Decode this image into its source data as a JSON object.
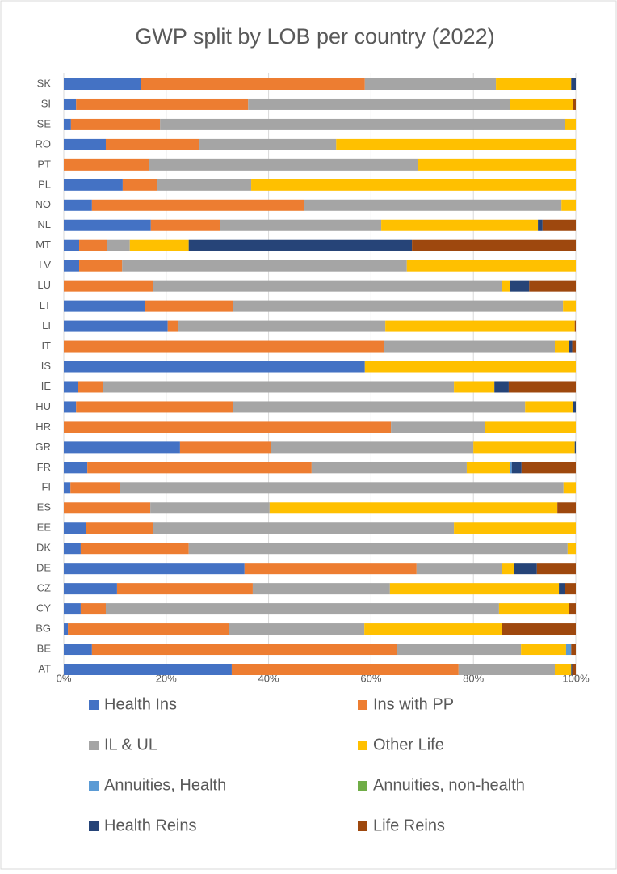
{
  "chart_data": {
    "type": "stacked_barh",
    "title": "GWP split by LOB per country (2022)",
    "categories": [
      "AT",
      "BE",
      "BG",
      "CY",
      "CZ",
      "DE",
      "DK",
      "EE",
      "ES",
      "FI",
      "FR",
      "GR",
      "HR",
      "HU",
      "IE",
      "IS",
      "IT",
      "LI",
      "LT",
      "LU",
      "LV",
      "MT",
      "NL",
      "NO",
      "PL",
      "PT",
      "RO",
      "SE",
      "SI",
      "SK"
    ],
    "series": [
      {
        "name": "Health Ins",
        "color": "#4472c4",
        "values": [
          32.8,
          5.5,
          0.8,
          3.3,
          10.4,
          35.3,
          3.3,
          4.3,
          0,
          1.3,
          4.6,
          22.7,
          0,
          2.4,
          2.7,
          58.8,
          0,
          20.3,
          15.8,
          0,
          3.0,
          3.0,
          17.0,
          5.5,
          11.5,
          0,
          8.2,
          1.4,
          2.4,
          15.1
        ]
      },
      {
        "name": "Ins with PP",
        "color": "#ed7d31",
        "values": [
          44.3,
          59.5,
          31.5,
          4.9,
          26.5,
          33.6,
          21.1,
          13.2,
          16.9,
          9.7,
          43.8,
          17.8,
          63.9,
          30.7,
          5.0,
          0,
          62.5,
          2.1,
          17.3,
          17.5,
          8.4,
          5.5,
          13.6,
          41.5,
          6.8,
          16.6,
          18.3,
          17.4,
          33.6,
          43.7
        ]
      },
      {
        "name": "IL & UL",
        "color": "#a5a5a5",
        "values": [
          18.8,
          24.3,
          26.4,
          76.8,
          26.8,
          16.7,
          74.0,
          58.7,
          23.3,
          86.6,
          30.3,
          39.5,
          18.4,
          57.0,
          68.5,
          0,
          33.4,
          40.4,
          64.4,
          68.0,
          55.6,
          4.4,
          31.4,
          50.2,
          18.3,
          52.6,
          26.7,
          79.1,
          51.1,
          25.6
        ]
      },
      {
        "name": "Other Life",
        "color": "#ffc000",
        "values": [
          3.2,
          8.8,
          26.9,
          13.7,
          33.0,
          2.4,
          1.6,
          23.8,
          56.2,
          2.4,
          8.5,
          19.8,
          17.7,
          9.4,
          7.9,
          41.2,
          2.7,
          37.0,
          2.5,
          1.7,
          33.0,
          11.5,
          30.6,
          2.8,
          63.4,
          30.8,
          46.8,
          2.1,
          12.4,
          14.7
        ]
      },
      {
        "name": "Annuities, Health",
        "color": "#5b9bd5",
        "values": [
          0,
          1.0,
          0,
          0,
          0,
          0,
          0,
          0,
          0,
          0,
          0.3,
          0,
          0,
          0,
          0,
          0,
          0,
          0,
          0,
          0,
          0,
          0,
          0,
          0,
          0,
          0,
          0,
          0,
          0,
          0
        ]
      },
      {
        "name": "Annuities, non-health",
        "color": "#70ad47",
        "values": [
          0,
          0,
          0,
          0,
          0,
          0,
          0,
          0,
          0,
          0,
          0,
          0,
          0,
          0,
          0,
          0,
          0,
          0,
          0,
          0,
          0,
          0,
          0,
          0,
          0,
          0,
          0,
          0,
          0,
          0
        ]
      },
      {
        "name": "Health Reins",
        "color": "#264478",
        "values": [
          0.2,
          0,
          0,
          0,
          1.2,
          4.4,
          0,
          0,
          0,
          0,
          1.9,
          0.2,
          0,
          0.5,
          2.8,
          0,
          0.7,
          0,
          0,
          3.7,
          0,
          43.6,
          0.9,
          0,
          0,
          0,
          0,
          0,
          0,
          0.9
        ]
      },
      {
        "name": "Life Reins",
        "color": "#9e480e",
        "values": [
          0.7,
          0.9,
          14.4,
          1.3,
          2.1,
          7.6,
          0,
          0,
          3.6,
          0,
          10.6,
          0,
          0,
          0,
          13.1,
          0,
          0.7,
          0.2,
          0,
          9.1,
          0,
          32.0,
          6.5,
          0,
          0,
          0,
          0,
          0,
          0.5,
          0
        ]
      }
    ],
    "xlim": [
      0,
      100
    ],
    "xticks": [
      {
        "value": 0,
        "label": "0%"
      },
      {
        "value": 20,
        "label": "20%"
      },
      {
        "value": 40,
        "label": "40%"
      },
      {
        "value": 60,
        "label": "60%"
      },
      {
        "value": 80,
        "label": "80%"
      },
      {
        "value": 100,
        "label": "100%"
      }
    ],
    "grid": true
  }
}
